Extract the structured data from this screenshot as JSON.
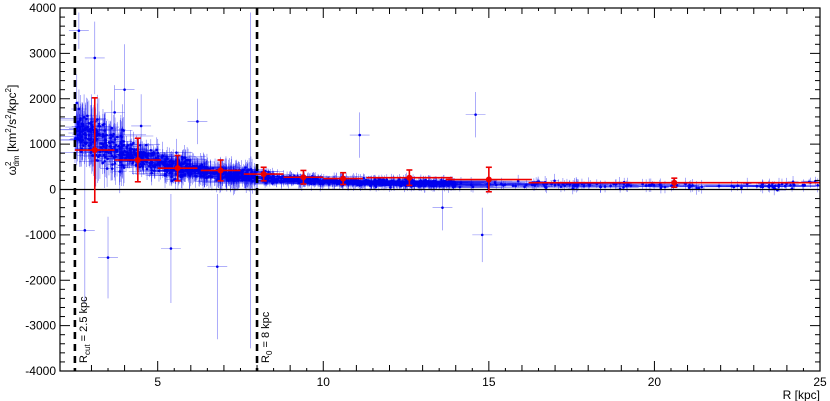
{
  "chart_data": {
    "type": "scatter",
    "title": "",
    "xlabel": "R [kpc]",
    "ylabel_parts": {
      "base": "ω",
      "sup": "2",
      "sub": "dm",
      "units_prefix": " [km",
      "units_sup1": "2",
      "units_mid": "/s",
      "units_sup2": "2",
      "units_mid2": "/kpc",
      "units_sup3": "2",
      "units_suffix": "]"
    },
    "xlim": [
      2.05,
      25.0
    ],
    "ylim": [
      -4000,
      4000
    ],
    "xticks": [
      5,
      10,
      15,
      20,
      25
    ],
    "yticks": [
      -4000,
      -3000,
      -2000,
      -1000,
      0,
      1000,
      2000,
      3000,
      4000
    ],
    "grid": false,
    "zero_line": true,
    "vlines": [
      {
        "x": 2.5,
        "label": "R",
        "label_sub": "cut",
        "label_rest": " = 2.5 kpc"
      },
      {
        "x": 8.0,
        "label": "R",
        "label_sub": "0",
        "label_rest": " = 8 kpc"
      }
    ],
    "colors": {
      "raw": "#0000ee",
      "binned": "#ee0000",
      "vline": "#000000"
    },
    "binned": [
      {
        "x": 3.1,
        "xerr": 0.6,
        "y": 870,
        "yerr": 1150
      },
      {
        "x": 4.4,
        "xerr": 0.7,
        "y": 650,
        "yerr": 480
      },
      {
        "x": 5.6,
        "xerr": 0.6,
        "y": 470,
        "yerr": 280
      },
      {
        "x": 6.9,
        "xerr": 0.6,
        "y": 420,
        "yerr": 230
      },
      {
        "x": 8.2,
        "xerr": 0.6,
        "y": 340,
        "yerr": 150
      },
      {
        "x": 9.4,
        "xerr": 0.6,
        "y": 270,
        "yerr": 150
      },
      {
        "x": 10.6,
        "xerr": 0.6,
        "y": 240,
        "yerr": 130
      },
      {
        "x": 12.6,
        "xerr": 1.3,
        "y": 260,
        "yerr": 170
      },
      {
        "x": 15.0,
        "xerr": 1.3,
        "y": 220,
        "yerr": 270
      },
      {
        "x": 20.6,
        "xerr": 4.4,
        "y": 150,
        "yerr": 100
      }
    ],
    "raw_outliers": [
      {
        "x": 2.62,
        "y": 3500,
        "yerr": 400
      },
      {
        "x": 3.1,
        "y": 2900,
        "yerr": 800
      },
      {
        "x": 4.0,
        "y": 2200,
        "yerr": 1000
      },
      {
        "x": 3.7,
        "y": 1700,
        "yerr": 600
      },
      {
        "x": 4.5,
        "y": 1400,
        "yerr": 700
      },
      {
        "x": 3.4,
        "y": 1300,
        "yerr": 400
      },
      {
        "x": 2.8,
        "y": -900,
        "yerr": 1600
      },
      {
        "x": 3.5,
        "y": -1500,
        "yerr": 900
      },
      {
        "x": 5.4,
        "y": -1300,
        "yerr": 1200
      },
      {
        "x": 7.8,
        "y": 200,
        "yerr": 3700
      },
      {
        "x": 6.8,
        "y": -1700,
        "yerr": 1600
      },
      {
        "x": 14.6,
        "y": 1650,
        "yerr": 500
      },
      {
        "x": 14.8,
        "y": -1000,
        "yerr": 600
      },
      {
        "x": 11.1,
        "y": 1200,
        "yerr": 500
      },
      {
        "x": 13.6,
        "y": -400,
        "yerr": 500
      },
      {
        "x": 6.2,
        "y": 1500,
        "yerr": 500
      }
    ]
  }
}
